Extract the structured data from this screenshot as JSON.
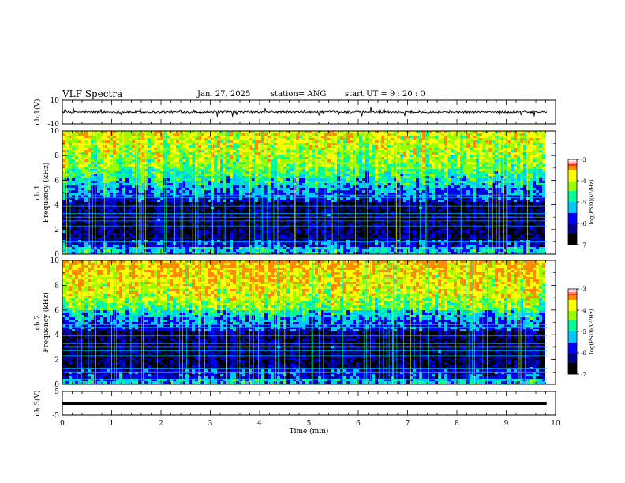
{
  "header": {
    "title": "VLF Spectra",
    "date": "Jan. 27, 2025",
    "station": "station= ANG",
    "start": "start  UT =   9 : 20 : 0"
  },
  "chart_data": [
    {
      "type": "line",
      "panel": "ch1-waveform",
      "ylabel": "ch.1(V)",
      "ylim": [
        -10,
        10
      ],
      "ytick_labels": [
        "10",
        "-10"
      ],
      "xlim": [
        0,
        10
      ],
      "baseline": 0
    },
    {
      "type": "heatmap",
      "panel": "ch1-spectrogram",
      "ylabel": "ch.1 Frequency (kHz)",
      "ylim": [
        0,
        10
      ],
      "ytick_labels": [
        "0",
        "2",
        "4",
        "6",
        "8",
        "10"
      ],
      "xlim": [
        0,
        10
      ],
      "colorbar": {
        "label": "log(PSD)(V²/Hz)",
        "range": [
          -7,
          -3
        ],
        "tick_labels": [
          "-3",
          "-4",
          "-5",
          "-6",
          "-7"
        ]
      }
    },
    {
      "type": "heatmap",
      "panel": "ch2-spectrogram",
      "ylabel": "ch.2 Frequency (kHz)",
      "ylim": [
        0,
        10
      ],
      "ytick_labels": [
        "0",
        "2",
        "4",
        "6",
        "8",
        "10"
      ],
      "xlim": [
        0,
        10
      ],
      "colorbar": {
        "label": "log(PSD)(V²/Hz)",
        "range": [
          -7,
          -3
        ],
        "tick_labels": [
          "-3",
          "-4",
          "-5",
          "-6",
          "-7"
        ]
      }
    },
    {
      "type": "line",
      "panel": "ch3-waveform",
      "ylabel": "ch.3(V)",
      "ylim": [
        -5,
        5
      ],
      "ytick_labels": [
        "5",
        "-5"
      ],
      "xlim": [
        0,
        10
      ],
      "xlabel": "Time  (min)",
      "xtick_labels": [
        "0",
        "1",
        "2",
        "3",
        "4",
        "5",
        "6",
        "7",
        "8",
        "9",
        "10"
      ],
      "constant_value": 0
    }
  ],
  "colors": {
    "colormap": [
      "#000000",
      "#00008c",
      "#0000ff",
      "#00c8ff",
      "#00ff96",
      "#96ff00",
      "#ffff00",
      "#ff8c00",
      "#ff0000",
      "#ffffff"
    ]
  }
}
